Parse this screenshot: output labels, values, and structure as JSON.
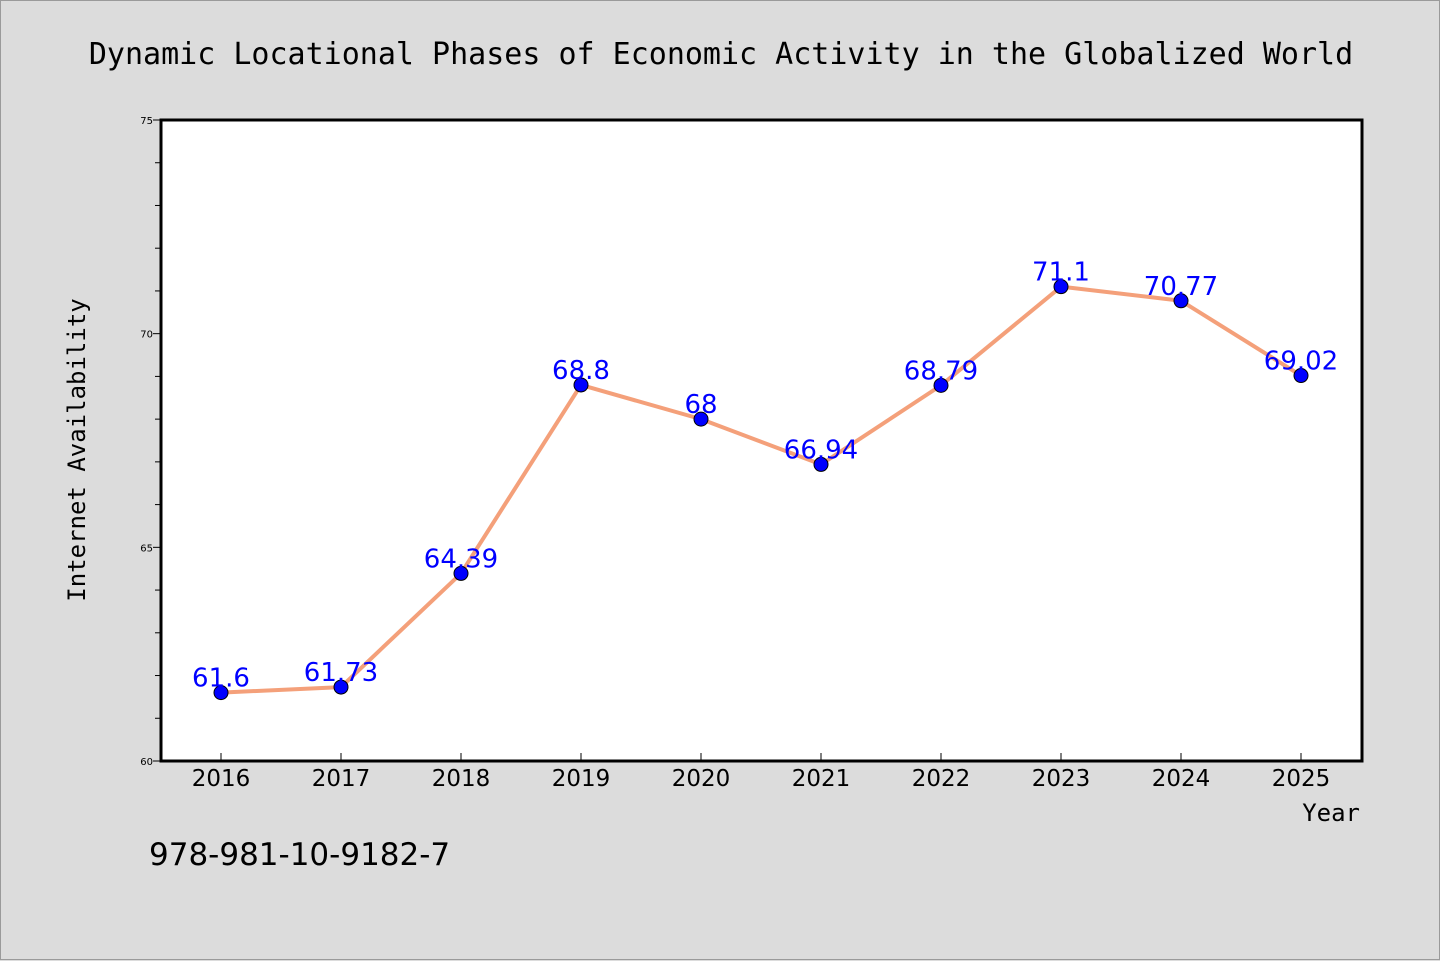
{
  "chart_data": {
    "type": "line",
    "title": "Dynamic Locational Phases of Economic Activity in the Globalized World",
    "xlabel": "Year",
    "ylabel": "Internet Availability",
    "categories": [
      "2016",
      "2017",
      "2018",
      "2019",
      "2020",
      "2021",
      "2022",
      "2023",
      "2024",
      "2025"
    ],
    "series": [
      {
        "values": [
          61.6,
          61.73,
          64.39,
          68.8,
          68,
          66.94,
          68.79,
          71.1,
          70.77,
          69.02
        ],
        "data_labels": [
          "61.6",
          "61.73",
          "64.39",
          "68.8",
          "68",
          "66.94",
          "68.79",
          "71.1",
          "70.77",
          "69.02"
        ]
      }
    ],
    "ylim": [
      60,
      75
    ],
    "yticks": [
      "60",
      "65",
      "70",
      "75"
    ],
    "grid": false,
    "legend": "none",
    "colors": {
      "line": "#f4a07a",
      "marker": "#0000ff",
      "data_label": "#0000ff",
      "background": "#dcdcdc",
      "plot_area": "#ffffff"
    }
  },
  "footnote": "978-981-10-9182-7"
}
